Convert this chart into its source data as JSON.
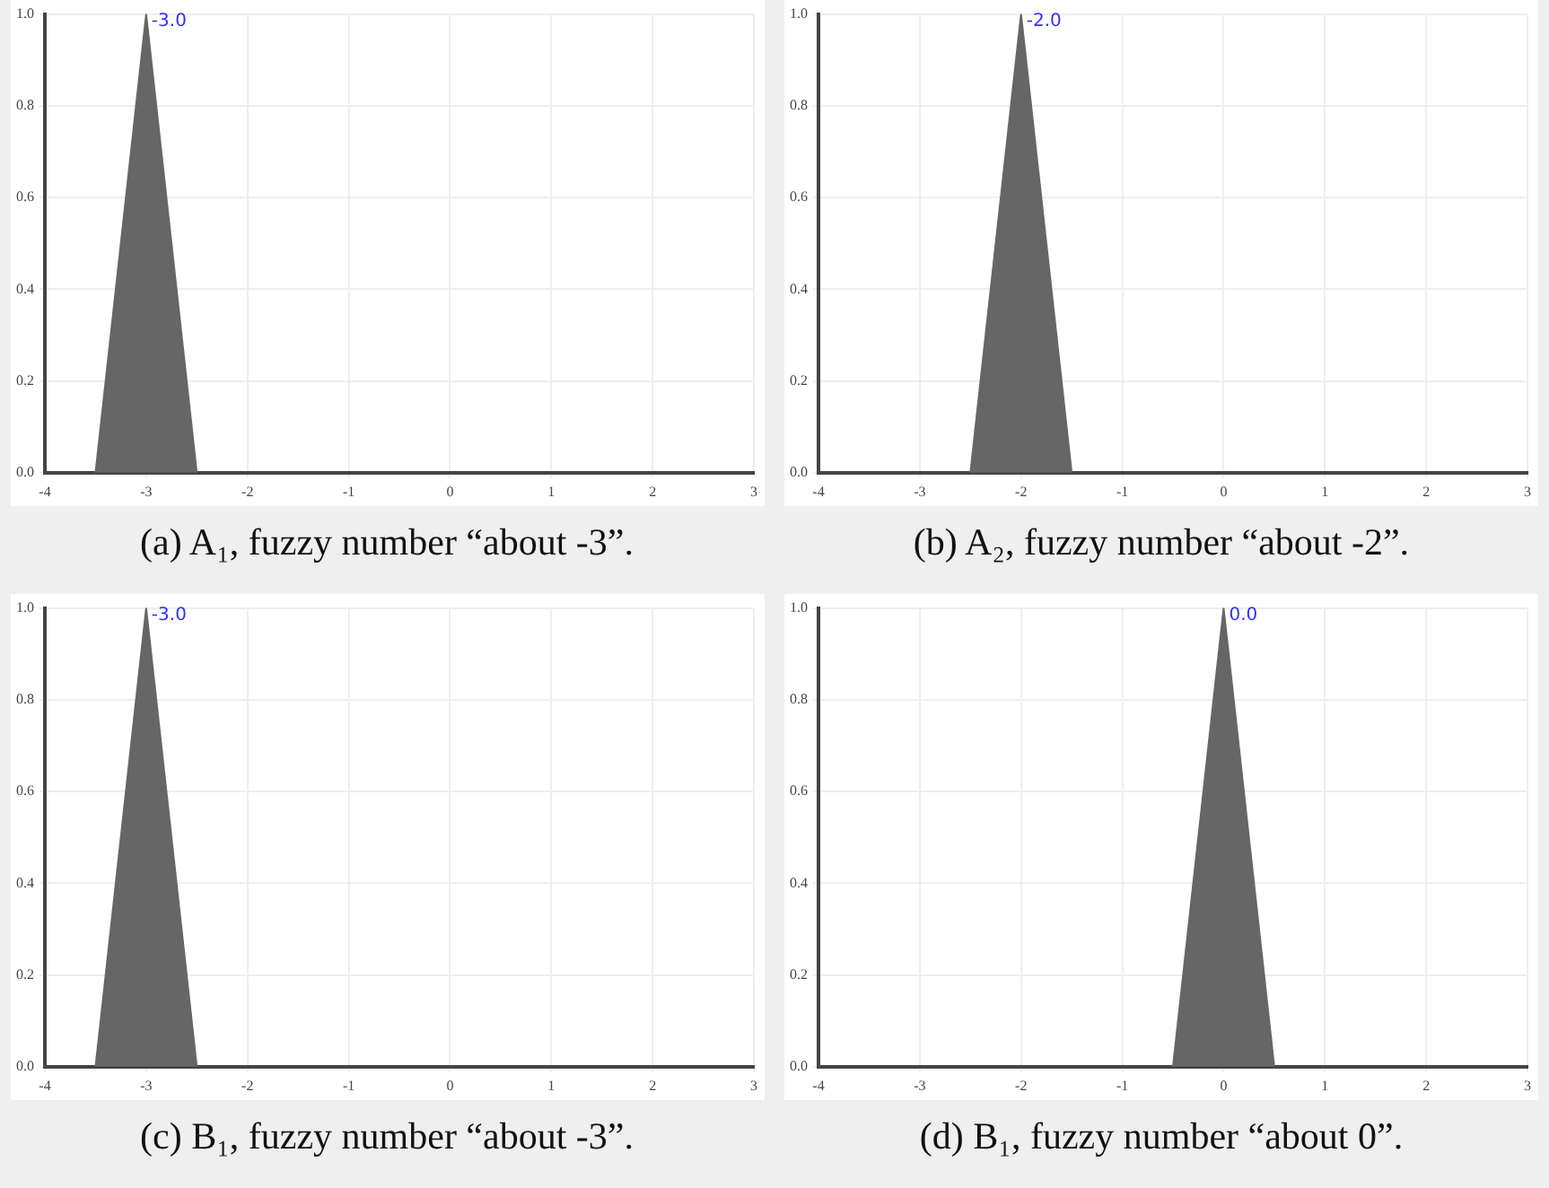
{
  "chart_data": [
    {
      "type": "area",
      "title": "(a) A₁, fuzzy number “about -3”.",
      "x": [
        -3.5,
        -3,
        -2.5
      ],
      "series": [
        {
          "color": "#666666",
          "values": [
            0,
            1,
            0
          ]
        }
      ],
      "xlim": [
        -4,
        3
      ],
      "xticks": [
        -4,
        -3,
        -2,
        -1,
        0,
        1,
        2,
        3
      ],
      "ylim": [
        0,
        1
      ],
      "yticks": [
        {
          "value": 0,
          "label": "0.0"
        },
        {
          "value": 0.2,
          "label": "0.2"
        },
        {
          "value": 0.4,
          "label": "0.4"
        },
        {
          "value": 0.6,
          "label": "0.6"
        },
        {
          "value": 0.8,
          "label": "0.8"
        },
        {
          "value": 1,
          "label": "1.0"
        }
      ],
      "grid": true,
      "legend": false,
      "annotations": [
        {
          "text": "-3.0",
          "x": -3,
          "y": 1
        }
      ]
    },
    {
      "type": "area",
      "title": "(b) A₂, fuzzy number “about -2”.",
      "x": [
        -2.5,
        -2,
        -1.5
      ],
      "series": [
        {
          "color": "#666666",
          "values": [
            0,
            1,
            0
          ]
        }
      ],
      "xlim": [
        -4,
        3
      ],
      "xticks": [
        -4,
        -3,
        -2,
        -1,
        0,
        1,
        2,
        3
      ],
      "ylim": [
        0,
        1
      ],
      "yticks": [
        {
          "value": 0,
          "label": "0.0"
        },
        {
          "value": 0.2,
          "label": "0.2"
        },
        {
          "value": 0.4,
          "label": "0.4"
        },
        {
          "value": 0.6,
          "label": "0.6"
        },
        {
          "value": 0.8,
          "label": "0.8"
        },
        {
          "value": 1,
          "label": "1.0"
        }
      ],
      "grid": true,
      "legend": false,
      "annotations": [
        {
          "text": "-2.0",
          "x": -2,
          "y": 1
        }
      ]
    },
    {
      "type": "area",
      "title": "(c) B₁, fuzzy number “about -3”.",
      "x": [
        -3.5,
        -3,
        -2.5
      ],
      "series": [
        {
          "color": "#666666",
          "values": [
            0,
            1,
            0
          ]
        }
      ],
      "xlim": [
        -4,
        3
      ],
      "xticks": [
        -4,
        -3,
        -2,
        -1,
        0,
        1,
        2,
        3
      ],
      "ylim": [
        0,
        1
      ],
      "yticks": [
        {
          "value": 0,
          "label": "0.0"
        },
        {
          "value": 0.2,
          "label": "0.2"
        },
        {
          "value": 0.4,
          "label": "0.4"
        },
        {
          "value": 0.6,
          "label": "0.6"
        },
        {
          "value": 0.8,
          "label": "0.8"
        },
        {
          "value": 1,
          "label": "1.0"
        }
      ],
      "grid": true,
      "legend": false,
      "annotations": [
        {
          "text": "-3.0",
          "x": -3,
          "y": 1
        }
      ]
    },
    {
      "type": "area",
      "title": "(d) B₁, fuzzy number “about 0”.",
      "x": [
        -0.5,
        0,
        0.5
      ],
      "series": [
        {
          "color": "#666666",
          "values": [
            0,
            1,
            0
          ]
        }
      ],
      "xlim": [
        -4,
        3
      ],
      "xticks": [
        -4,
        -3,
        -2,
        -1,
        0,
        1,
        2,
        3
      ],
      "ylim": [
        0,
        1
      ],
      "yticks": [
        {
          "value": 0,
          "label": "0.0"
        },
        {
          "value": 0.2,
          "label": "0.2"
        },
        {
          "value": 0.4,
          "label": "0.4"
        },
        {
          "value": 0.6,
          "label": "0.6"
        },
        {
          "value": 0.8,
          "label": "0.8"
        },
        {
          "value": 1,
          "label": "1.0"
        }
      ],
      "grid": true,
      "legend": false,
      "annotations": [
        {
          "text": "0.0",
          "x": 0,
          "y": 1
        }
      ]
    }
  ]
}
